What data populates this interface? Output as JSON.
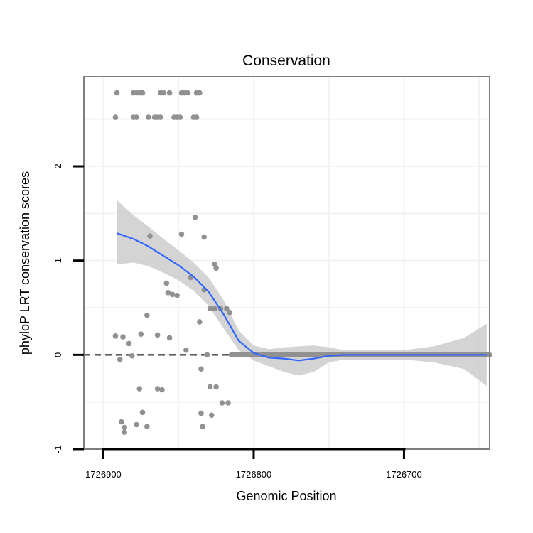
{
  "chart_data": {
    "type": "scatter",
    "title": "Conservation",
    "xlabel": "Genomic Position",
    "ylabel": "phyloP LRT conservation scores",
    "x_reversed": true,
    "xlim": [
      1726913,
      1726643
    ],
    "ylim": [
      -1.0,
      2.95
    ],
    "x_ticks": [
      1726900,
      1726800,
      1726700
    ],
    "x_tick_labels": [
      "1726900",
      "1726800",
      "1726700"
    ],
    "y_ticks": [
      -1,
      0,
      1,
      2
    ],
    "y_tick_labels": [
      "-1",
      "0",
      "1",
      "2"
    ],
    "grid": true,
    "reference_line": {
      "y": 0,
      "style": "dashed"
    },
    "colors": {
      "points": "#919191",
      "smooth": "#3366ff",
      "ribbon": "#cccccc",
      "frame": "#7f7f7f",
      "grid": "#f2f2f2"
    },
    "series": [
      {
        "name": "scores",
        "points": [
          [
            1726891,
            2.78
          ],
          [
            1726880,
            2.78
          ],
          [
            1726878,
            2.78
          ],
          [
            1726876,
            2.78
          ],
          [
            1726874,
            2.78
          ],
          [
            1726862,
            2.78
          ],
          [
            1726860,
            2.78
          ],
          [
            1726856,
            2.78
          ],
          [
            1726848,
            2.78
          ],
          [
            1726846,
            2.78
          ],
          [
            1726844,
            2.78
          ],
          [
            1726838,
            2.78
          ],
          [
            1726836,
            2.78
          ],
          [
            1726892,
            2.52
          ],
          [
            1726880,
            2.52
          ],
          [
            1726878,
            2.52
          ],
          [
            1726870,
            2.52
          ],
          [
            1726866,
            2.52
          ],
          [
            1726864,
            2.52
          ],
          [
            1726862,
            2.52
          ],
          [
            1726853,
            2.52
          ],
          [
            1726851,
            2.52
          ],
          [
            1726849,
            2.52
          ],
          [
            1726840,
            2.52
          ],
          [
            1726838,
            2.52
          ],
          [
            1726839,
            1.46
          ],
          [
            1726848,
            1.28
          ],
          [
            1726833,
            1.25
          ],
          [
            1726869,
            1.26
          ],
          [
            1726826,
            0.96
          ],
          [
            1726825,
            0.92
          ],
          [
            1726842,
            0.82
          ],
          [
            1726858,
            0.76
          ],
          [
            1726833,
            0.69
          ],
          [
            1726857,
            0.66
          ],
          [
            1726854,
            0.64
          ],
          [
            1726851,
            0.63
          ],
          [
            1726829,
            0.49
          ],
          [
            1726826,
            0.49
          ],
          [
            1726822,
            0.49
          ],
          [
            1726818,
            0.49
          ],
          [
            1726816,
            0.45
          ],
          [
            1726871,
            0.42
          ],
          [
            1726836,
            0.35
          ],
          [
            1726875,
            0.22
          ],
          [
            1726864,
            0.21
          ],
          [
            1726892,
            0.2
          ],
          [
            1726887,
            0.19
          ],
          [
            1726856,
            0.18
          ],
          [
            1726883,
            0.12
          ],
          [
            1726845,
            0.05
          ],
          [
            1726831,
            0.0
          ],
          [
            1726889,
            -0.05
          ],
          [
            1726881,
            -0.01
          ],
          [
            1726835,
            -0.15
          ],
          [
            1726876,
            -0.36
          ],
          [
            1726864,
            -0.36
          ],
          [
            1726861,
            -0.37
          ],
          [
            1726829,
            -0.34
          ],
          [
            1726825,
            -0.34
          ],
          [
            1726821,
            -0.51
          ],
          [
            1726817,
            -0.51
          ],
          [
            1726874,
            -0.61
          ],
          [
            1726835,
            -0.62
          ],
          [
            1726828,
            -0.64
          ],
          [
            1726888,
            -0.71
          ],
          [
            1726878,
            -0.74
          ],
          [
            1726871,
            -0.76
          ],
          [
            1726834,
            -0.76
          ],
          [
            1726886,
            -0.77
          ],
          [
            1726886,
            -0.82
          ]
        ],
        "flat_segment": {
          "x_from": 1726815,
          "x_to": 1726643,
          "y": 0.0
        }
      },
      {
        "name": "smooth",
        "x": [
          1726891,
          1726880,
          1726870,
          1726860,
          1726850,
          1726840,
          1726830,
          1726820,
          1726810,
          1726800,
          1726790,
          1726780,
          1726770,
          1726760,
          1726750,
          1726740,
          1726720,
          1726700,
          1726680,
          1726660,
          1726645
        ],
        "y": [
          1.29,
          1.23,
          1.15,
          1.05,
          0.95,
          0.83,
          0.67,
          0.43,
          0.15,
          0.02,
          -0.03,
          -0.04,
          -0.06,
          -0.04,
          -0.01,
          0.0,
          0.0,
          0.0,
          0.0,
          0.0,
          0.0
        ],
        "ci_low": [
          0.96,
          0.98,
          0.94,
          0.87,
          0.79,
          0.68,
          0.52,
          0.28,
          0.05,
          -0.06,
          -0.12,
          -0.18,
          -0.22,
          -0.18,
          -0.08,
          -0.05,
          -0.05,
          -0.05,
          -0.08,
          -0.15,
          -0.33
        ],
        "ci_high": [
          1.64,
          1.48,
          1.36,
          1.23,
          1.11,
          0.98,
          0.82,
          0.58,
          0.26,
          0.1,
          0.06,
          0.08,
          0.09,
          0.1,
          0.08,
          0.05,
          0.05,
          0.05,
          0.09,
          0.18,
          0.33
        ]
      }
    ]
  }
}
